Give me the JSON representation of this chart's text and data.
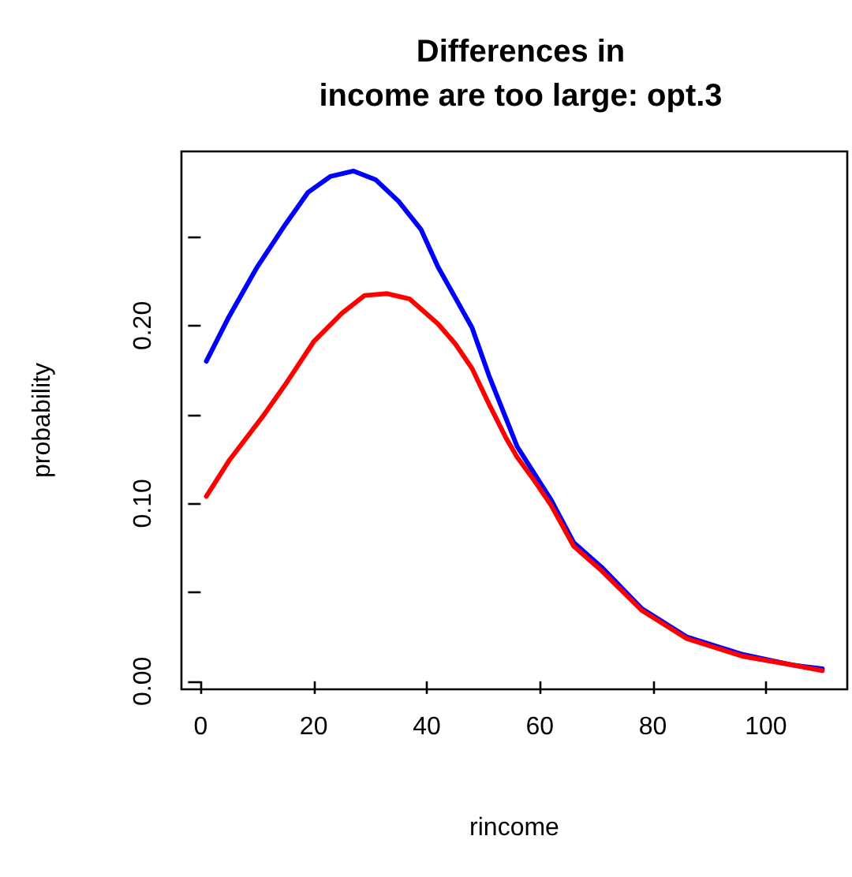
{
  "chart_data": {
    "type": "line",
    "title": "Differences in\nincome are too large: opt.3",
    "xlabel": "rincome",
    "ylabel": "probability",
    "xlim": [
      -3.4,
      114.4
    ],
    "ylim": [
      -0.0045,
      0.298
    ],
    "xticks": [
      0,
      20,
      40,
      60,
      80,
      100
    ],
    "yticks": [
      {
        "value": 0,
        "label": "0.00"
      },
      {
        "value": 0.05,
        "label": null
      },
      {
        "value": 0.1,
        "label": "0.10"
      },
      {
        "value": 0.15,
        "label": null
      },
      {
        "value": 0.2,
        "label": "0.20"
      },
      {
        "value": 0.25,
        "label": null
      }
    ],
    "grid": false,
    "marker": "none",
    "line_style": "solid",
    "series": [
      {
        "color": "#0000ff",
        "x": [
          1,
          5,
          10,
          15,
          19,
          23,
          27,
          31,
          35,
          39,
          42,
          45,
          48,
          51,
          54,
          56,
          59,
          62,
          66,
          71,
          78,
          86,
          96,
          105,
          110
        ],
        "values": [
          0.18,
          0.205,
          0.233,
          0.257,
          0.275,
          0.284,
          0.287,
          0.282,
          0.27,
          0.254,
          0.233,
          0.216,
          0.199,
          0.172,
          0.148,
          0.132,
          0.117,
          0.102,
          0.078,
          0.064,
          0.041,
          0.025,
          0.015,
          0.009,
          0.007
        ]
      },
      {
        "color": "#ff0000",
        "x": [
          1,
          5,
          11,
          15,
          20,
          25,
          29,
          33,
          37,
          42,
          45,
          48,
          51,
          54,
          56,
          59,
          62,
          66,
          71,
          78,
          86,
          96,
          105,
          110
        ],
        "values": [
          0.104,
          0.124,
          0.149,
          0.167,
          0.191,
          0.207,
          0.217,
          0.218,
          0.215,
          0.201,
          0.19,
          0.176,
          0.156,
          0.137,
          0.126,
          0.113,
          0.099,
          0.076,
          0.062,
          0.04,
          0.024,
          0.014,
          0.009,
          0.006
        ]
      }
    ]
  }
}
